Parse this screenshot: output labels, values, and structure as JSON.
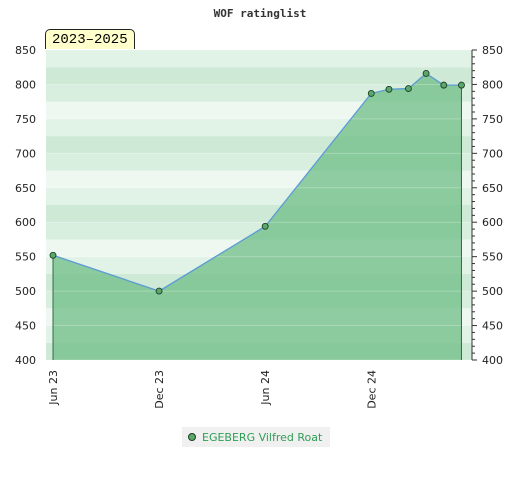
{
  "chart_data": {
    "type": "area",
    "title": "WOF ratinglist",
    "period_badge": "2023–2025",
    "xlabel": "",
    "ylabel": "",
    "ylim": [
      400,
      850
    ],
    "y_ticks": [
      400,
      450,
      500,
      550,
      600,
      650,
      700,
      750,
      800,
      850
    ],
    "x_ticks": [
      "Jun 23",
      "Dec 23",
      "Jun 24",
      "Dec 24"
    ],
    "x_tick_months": [
      0,
      6,
      12,
      18
    ],
    "x_range_months": [
      0,
      23.3
    ],
    "series": [
      {
        "name": "EGEBERG Vilfred Roat",
        "points": [
          {
            "m": 0.0,
            "value": 552
          },
          {
            "m": 6.0,
            "value": 500
          },
          {
            "m": 12.0,
            "value": 594
          },
          {
            "m": 18.0,
            "value": 787
          },
          {
            "m": 19.0,
            "value": 793
          },
          {
            "m": 20.1,
            "value": 794
          },
          {
            "m": 21.1,
            "value": 816
          },
          {
            "m": 22.1,
            "value": 799
          },
          {
            "m": 23.1,
            "value": 799
          }
        ]
      }
    ],
    "grid": true,
    "legend_position": "bottom"
  },
  "colors": {
    "area_fill": "#6fbd85",
    "line": "#5b9bd5",
    "marker": "#5aa86a",
    "legend_text": "#2e9e56"
  }
}
